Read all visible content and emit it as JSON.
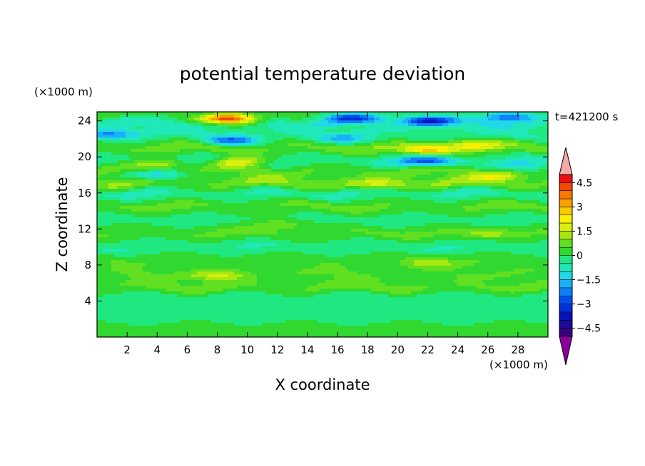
{
  "chart_data": {
    "type": "heatmap",
    "title": "potential temperature deviation",
    "xlabel": "X coordinate",
    "ylabel": "Z coordinate",
    "x_unit": "(×1000 m)",
    "y_unit": "(×1000 m)",
    "time_label": "t=421200 s",
    "xlim": [
      0,
      30
    ],
    "ylim": [
      0,
      25
    ],
    "x_ticks": [
      2,
      4,
      6,
      8,
      10,
      12,
      14,
      16,
      18,
      20,
      22,
      24,
      26,
      28
    ],
    "y_ticks": [
      4,
      8,
      12,
      16,
      20,
      24
    ],
    "colorbar": {
      "levels": [
        -5,
        -4.5,
        -4,
        -3.5,
        -3,
        -2.5,
        -2,
        -1.5,
        -1,
        -0.5,
        0,
        0.5,
        1,
        1.5,
        2,
        2.5,
        3,
        3.5,
        4,
        4.5,
        5
      ],
      "labels": [
        {
          "value": 4.5,
          "text": "4.5"
        },
        {
          "value": 3,
          "text": "3"
        },
        {
          "value": 1.5,
          "text": "1.5"
        },
        {
          "value": 0,
          "text": "0"
        },
        {
          "value": -1.5,
          "text": "−1.5"
        },
        {
          "value": -3,
          "text": "−3"
        },
        {
          "value": -4.5,
          "text": "−4.5"
        }
      ],
      "colors": [
        "#3a007a",
        "#1a0a9a",
        "#0a10b8",
        "#0030d8",
        "#0050f0",
        "#1080f8",
        "#18b0f8",
        "#20d8e8",
        "#20e8b8",
        "#20e880",
        "#30d830",
        "#60e020",
        "#a8e810",
        "#d8f010",
        "#f8f000",
        "#f8c800",
        "#f8a000",
        "#f87800",
        "#f04800",
        "#e81010"
      ],
      "over_color": "#f4a8a8",
      "under_color": "#8a009a"
    },
    "z_bands": [
      {
        "z": 24.5,
        "value": 0.4
      },
      {
        "z": 23.8,
        "value": -1.0
      },
      {
        "z": 22.5,
        "value": -0.6
      },
      {
        "z": 21.0,
        "value": 1.0
      },
      {
        "z": 19.5,
        "value": -0.8
      },
      {
        "z": 18.5,
        "value": 0.9
      },
      {
        "z": 17.0,
        "value": 1.2
      },
      {
        "z": 16.0,
        "value": -0.9
      },
      {
        "z": 14.5,
        "value": 0.8
      },
      {
        "z": 13.0,
        "value": -0.3
      },
      {
        "z": 11.5,
        "value": 0.7
      },
      {
        "z": 10.0,
        "value": -0.6
      },
      {
        "z": 8.5,
        "value": 0.5
      },
      {
        "z": 7.0,
        "value": 0.6
      },
      {
        "z": 5.5,
        "value": 0.9
      },
      {
        "z": 4.5,
        "value": -0.4
      },
      {
        "z": 2.5,
        "value": -0.5
      },
      {
        "z": 1.0,
        "value": 0.2
      }
    ],
    "anomalies": [
      {
        "x": 8.8,
        "z": 24.2,
        "value": 4.6
      },
      {
        "x": 9.5,
        "z": 19.5,
        "value": 2.3
      },
      {
        "x": 4.0,
        "z": 19.2,
        "value": 1.6
      },
      {
        "x": 22.0,
        "z": 20.8,
        "value": 2.2
      },
      {
        "x": 25.0,
        "z": 21.3,
        "value": 1.8
      },
      {
        "x": 26.5,
        "z": 17.8,
        "value": 1.5
      },
      {
        "x": 18.5,
        "z": 17.0,
        "value": 1.3
      },
      {
        "x": 17.0,
        "z": 24.3,
        "value": -3.0
      },
      {
        "x": 22.0,
        "z": 24.0,
        "value": -3.3
      },
      {
        "x": 27.5,
        "z": 24.4,
        "value": -2.6
      },
      {
        "x": 9.0,
        "z": 21.8,
        "value": -2.5
      },
      {
        "x": 22.0,
        "z": 19.5,
        "value": -2.4
      },
      {
        "x": 4.0,
        "z": 18.0,
        "value": -1.8
      },
      {
        "x": 0.8,
        "z": 22.5,
        "value": -1.8
      },
      {
        "x": 16.5,
        "z": 22.0,
        "value": -1.4
      },
      {
        "x": 28.5,
        "z": 19.0,
        "value": -1.5
      },
      {
        "x": 8.0,
        "z": 6.8,
        "value": 1.4
      },
      {
        "x": 22.0,
        "z": 8.2,
        "value": 1.1
      },
      {
        "x": 26.0,
        "z": 11.5,
        "value": 1.0
      },
      {
        "x": 12.0,
        "z": 12.5,
        "value": 1.0
      }
    ]
  }
}
